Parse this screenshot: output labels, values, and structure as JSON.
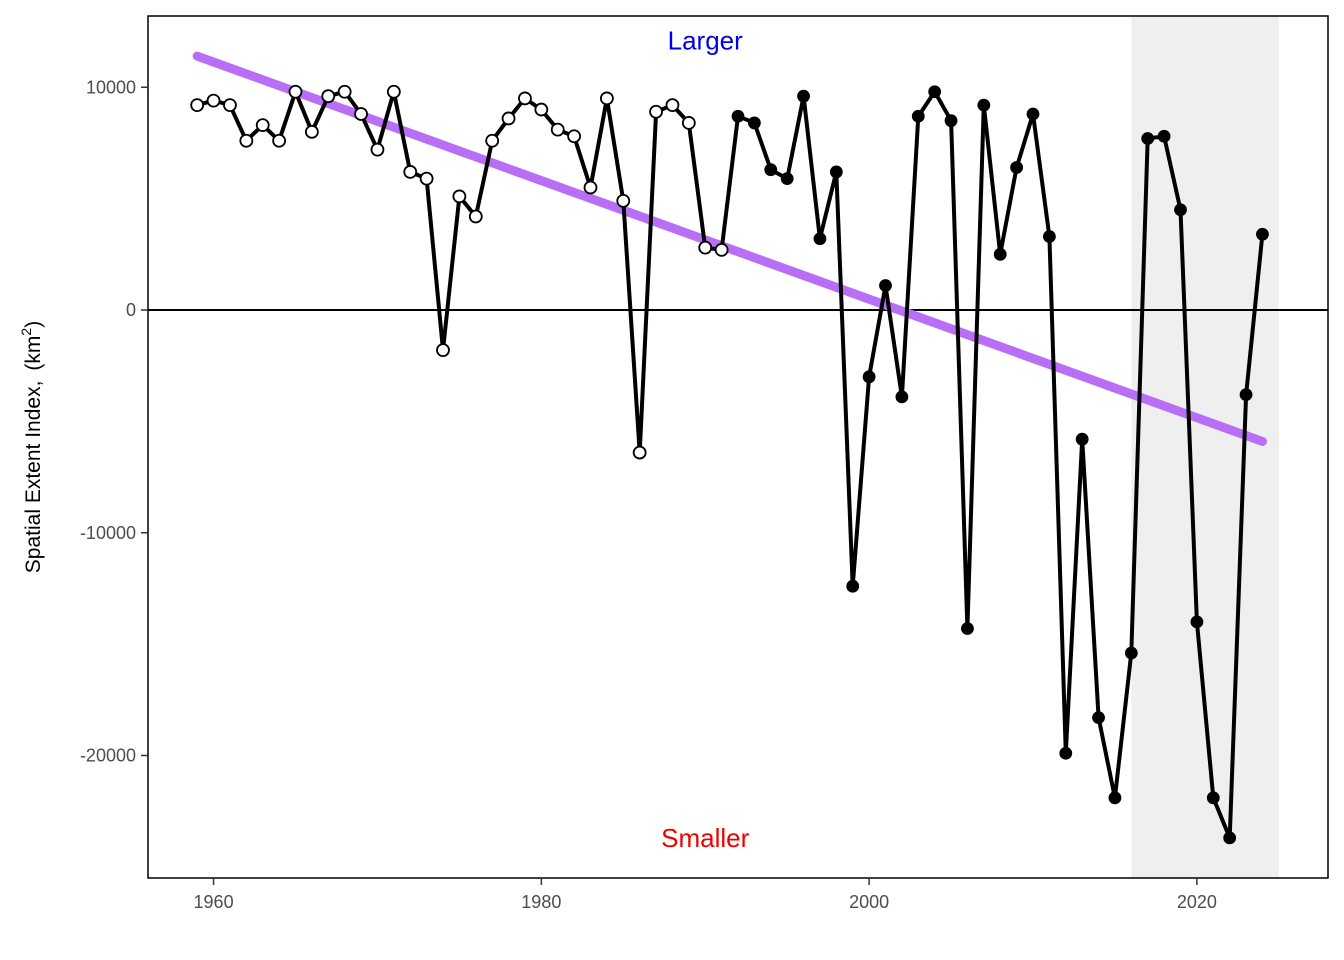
{
  "chart_data": {
    "type": "line",
    "title": "",
    "xlabel": "",
    "ylabel": "Spatial Extent Index,",
    "ylabel_unit_base": "(km",
    "ylabel_unit_exp": "2",
    "ylabel_unit_close": ")",
    "xlim": [
      1956,
      2028
    ],
    "ylim": [
      -25500,
      13200
    ],
    "x_ticks": [
      1960,
      1980,
      2000,
      2020
    ],
    "x_tick_labels": [
      "1960",
      "1980",
      "2000",
      "2020"
    ],
    "y_ticks": [
      -20000,
      -10000,
      0,
      10000
    ],
    "y_tick_labels": [
      "-20000",
      "-10000",
      "0",
      "10000"
    ],
    "annotations": [
      {
        "text": "Larger",
        "x": 1990,
        "y": 12100,
        "color": "#0000ee"
      },
      {
        "text": "Smaller",
        "x": 1990,
        "y": -23700,
        "color": "#ee0000"
      }
    ],
    "shaded_region": {
      "x0": 2016,
      "x1": 2025,
      "color": "#efefef"
    },
    "zero_line": 0,
    "trend": {
      "x": [
        1959,
        2024
      ],
      "y": [
        11400,
        -5900
      ],
      "color": "#b86ef5"
    },
    "series": [
      {
        "x": [
          1959,
          1960,
          1961,
          1962,
          1963,
          1964,
          1965,
          1966,
          1967,
          1968,
          1969,
          1970,
          1971,
          1972,
          1973,
          1974,
          1975,
          1976,
          1977,
          1978,
          1979,
          1980,
          1981,
          1982,
          1983,
          1984,
          1985,
          1986,
          1987,
          1988,
          1989,
          1990,
          1991,
          1992,
          1993,
          1994,
          1995,
          1996,
          1997,
          1998,
          1999,
          2000,
          2001,
          2002,
          2003,
          2004,
          2005,
          2006,
          2007,
          2008,
          2009,
          2010,
          2011,
          2012,
          2013,
          2014,
          2015,
          2016,
          2017,
          2018,
          2019,
          2020,
          2021,
          2022,
          2023,
          2024
        ],
        "y": [
          9200,
          9400,
          9200,
          7600,
          8300,
          7600,
          9800,
          8000,
          9600,
          9800,
          8800,
          7200,
          9800,
          6200,
          5900,
          -1800,
          5100,
          4200,
          7600,
          8600,
          9500,
          9000,
          8100,
          7800,
          5500,
          9500,
          4900,
          -6400,
          8900,
          9200,
          8400,
          2800,
          2700,
          8700,
          8400,
          6300,
          5900,
          9600,
          3200,
          6200,
          -12400,
          -3000,
          1100,
          -3900,
          8700,
          9800,
          8500,
          -14300,
          9200,
          2500,
          6400,
          8800,
          3300,
          -19900,
          -5800,
          -18300,
          -21900,
          -15400,
          7700,
          7800,
          4500,
          -14000,
          -21900,
          -23700,
          -3800,
          3400
        ],
        "open_until_year": 1991,
        "color": "#000000"
      }
    ]
  }
}
